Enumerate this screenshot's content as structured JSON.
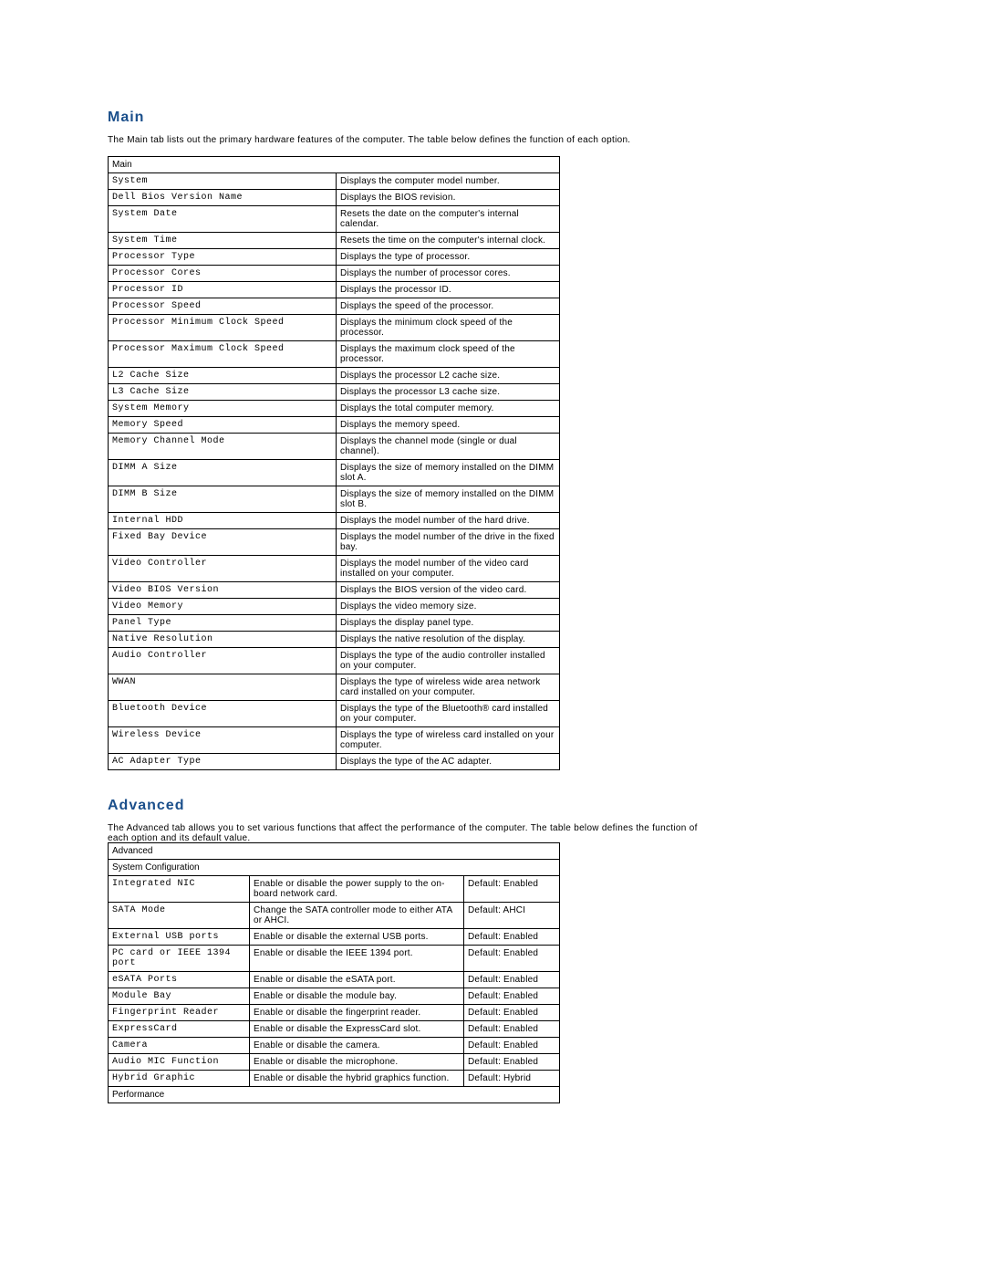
{
  "sections": {
    "main": {
      "title": "Main",
      "intro": "The Main tab lists out the primary hardware features of the computer. The table below defines the function of each option.",
      "header": "Main",
      "cols": [
        250,
        245
      ],
      "rows": [
        {
          "label": "System",
          "desc": "Displays the computer model number."
        },
        {
          "label": "Dell Bios Version Name",
          "desc": "Displays the BIOS revision."
        },
        {
          "label": "System Date",
          "desc": "Resets the date on the computer's internal calendar."
        },
        {
          "label": "System Time",
          "desc": "Resets the time on the computer's internal clock."
        },
        {
          "label": "Processor Type",
          "desc": "Displays the type of processor."
        },
        {
          "label": "Processor Cores",
          "desc": "Displays the number of processor cores."
        },
        {
          "label": "Processor ID",
          "desc": "Displays the processor ID."
        },
        {
          "label": "Processor Speed",
          "desc": "Displays the speed of the processor."
        },
        {
          "label": "Processor Minimum Clock Speed",
          "desc": "Displays the minimum clock speed of the processor."
        },
        {
          "label": "Processor Maximum Clock Speed",
          "desc": "Displays the maximum clock speed of the processor."
        },
        {
          "label": "L2 Cache Size",
          "desc": "Displays the processor L2 cache size."
        },
        {
          "label": "L3 Cache Size",
          "desc": "Displays the processor L3 cache size."
        },
        {
          "label": "System Memory",
          "desc": "Displays the total computer memory."
        },
        {
          "label": "Memory Speed",
          "desc": "Displays the memory speed."
        },
        {
          "label": "Memory Channel Mode",
          "desc": "Displays the channel mode (single or dual channel)."
        },
        {
          "label": "DIMM A Size",
          "desc": "Displays the size of memory installed on the DIMM slot A."
        },
        {
          "label": "DIMM B Size",
          "desc": "Displays the size of memory installed on the DIMM slot B."
        },
        {
          "label": "Internal HDD",
          "desc": "Displays the model number of the hard drive."
        },
        {
          "label": "Fixed Bay Device",
          "desc": "Displays the model number of the drive in the fixed bay."
        },
        {
          "label": "Video Controller",
          "desc": "Displays the model number of the video card installed on your computer."
        },
        {
          "label": "Video BIOS Version",
          "desc": "Displays the BIOS version of the video card."
        },
        {
          "label": "Video Memory",
          "desc": "Displays the video memory size."
        },
        {
          "label": "Panel Type",
          "desc": "Displays the display panel type."
        },
        {
          "label": "Native Resolution",
          "desc": "Displays the native resolution of the display."
        },
        {
          "label": "Audio Controller",
          "desc": "Displays the type of the audio controller installed on your computer."
        },
        {
          "label": "WWAN",
          "desc": "Displays the type of wireless wide area network card installed on your computer."
        },
        {
          "label": "Bluetooth Device",
          "desc": "Displays the type of the Bluetooth® card installed on your computer."
        },
        {
          "label": "Wireless Device",
          "desc": "Displays the type of wireless card installed on your computer."
        },
        {
          "label": "AC Adapter Type",
          "desc": "Displays the type of the AC adapter."
        }
      ]
    },
    "advanced": {
      "title": "Advanced",
      "intro": "The Advanced tab allows you to set various functions that affect the performance of the computer. The table below defines the function of each option and its default value.",
      "header": "Advanced",
      "cols": [
        155,
        235,
        105
      ],
      "groups": [
        {
          "name": "System Configuration",
          "rows": [
            {
              "label": "Integrated NIC",
              "desc": "Enable or disable the power supply to the on-board network card.",
              "def": "Default: Enabled"
            },
            {
              "label": "SATA Mode",
              "desc": "Change the SATA controller mode to either ATA or AHCI.",
              "def": "Default: AHCI"
            },
            {
              "label": "External USB ports",
              "desc": "Enable or disable the external USB ports.",
              "def": "Default: Enabled"
            },
            {
              "label": "PC card or IEEE 1394 port",
              "desc": "Enable or disable the IEEE 1394 port.",
              "def": "Default: Enabled"
            },
            {
              "label": "eSATA Ports",
              "desc": "Enable or disable the eSATA port.",
              "def": "Default: Enabled"
            },
            {
              "label": "Module Bay",
              "desc": "Enable or disable the module bay.",
              "def": "Default: Enabled"
            },
            {
              "label": "Fingerprint Reader",
              "desc": "Enable or disable the fingerprint reader.",
              "def": "Default: Enabled"
            },
            {
              "label": "ExpressCard",
              "desc": "Enable or disable the ExpressCard slot.",
              "def": "Default: Enabled"
            },
            {
              "label": "Camera",
              "desc": "Enable or disable the camera.",
              "def": "Default: Enabled"
            },
            {
              "label": "Audio MIC Function",
              "desc": "Enable or disable the microphone.",
              "def": "Default: Enabled"
            },
            {
              "label": "Hybrid Graphic",
              "desc": "Enable or disable the hybrid graphics function.",
              "def": "Default: Hybrid"
            }
          ]
        },
        {
          "name": "Performance",
          "rows": []
        }
      ]
    }
  }
}
